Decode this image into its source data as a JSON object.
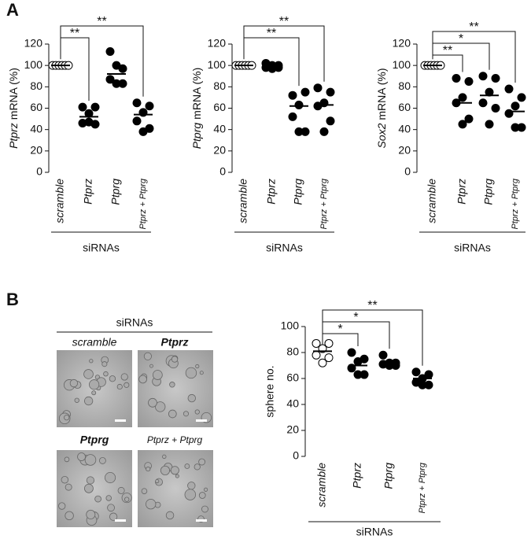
{
  "panel_labels": [
    "A",
    "B"
  ],
  "micrographs": {
    "header": "siRNAs",
    "labels": [
      "scramble",
      "Ptprz",
      "Ptprg",
      "Ptprz + Ptprg"
    ]
  },
  "chart_data": [
    {
      "type": "dot",
      "ylabel_gene": "Ptprz",
      "ylabel_unit": "mRNA (%)",
      "xlabel": "siRNAs",
      "categories": [
        "scramble",
        "Ptprz",
        "Ptprg",
        "Ptprz + Ptprg"
      ],
      "open_markers": [
        true,
        false,
        false,
        false
      ],
      "points": [
        [
          100,
          100,
          100,
          100,
          100,
          100
        ],
        [
          61,
          61,
          55,
          46,
          45,
          47
        ],
        [
          113,
          97,
          100,
          87,
          83,
          83
        ],
        [
          65,
          62,
          56,
          48,
          41,
          38
        ]
      ],
      "means": [
        100,
        52,
        92,
        54
      ],
      "ylim": [
        0,
        120
      ],
      "yticks": [
        0,
        20,
        40,
        60,
        80,
        100,
        120
      ],
      "comparisons": [
        {
          "from": 0,
          "to": 1,
          "label": "**"
        },
        {
          "from": 0,
          "to": 3,
          "label": "**"
        }
      ]
    },
    {
      "type": "dot",
      "ylabel_gene": "Ptprg",
      "ylabel_unit": "mRNA (%)",
      "xlabel": "siRNAs",
      "categories": [
        "scramble",
        "Ptprz",
        "Ptprg",
        "Ptprz + Ptprg"
      ],
      "open_markers": [
        true,
        false,
        false,
        false
      ],
      "points": [
        [
          100,
          100,
          100,
          100,
          100,
          100
        ],
        [
          102,
          100,
          100,
          98,
          98,
          97
        ],
        [
          72,
          75,
          63,
          52,
          38,
          38
        ],
        [
          79,
          75,
          65,
          62,
          48,
          38
        ]
      ],
      "means": [
        100,
        100,
        62,
        63
      ],
      "ylim": [
        0,
        120
      ],
      "yticks": [
        0,
        20,
        40,
        60,
        80,
        100,
        120
      ],
      "comparisons": [
        {
          "from": 0,
          "to": 2,
          "label": "**"
        },
        {
          "from": 0,
          "to": 3,
          "label": "**"
        }
      ]
    },
    {
      "type": "dot",
      "ylabel_gene": "Sox2",
      "ylabel_unit": "mRNA (%)",
      "xlabel": "siRNAs",
      "categories": [
        "scramble",
        "Ptprz",
        "Ptprg",
        "Ptprz + Ptprg"
      ],
      "open_markers": [
        true,
        false,
        false,
        false
      ],
      "points": [
        [
          100,
          100,
          100,
          100,
          100,
          100
        ],
        [
          88,
          85,
          70,
          65,
          50,
          45
        ],
        [
          90,
          88,
          75,
          65,
          60,
          45
        ],
        [
          78,
          70,
          62,
          55,
          42,
          42
        ]
      ],
      "means": [
        100,
        65,
        72,
        57
      ],
      "ylim": [
        0,
        120
      ],
      "yticks": [
        0,
        20,
        40,
        60,
        80,
        100,
        120
      ],
      "comparisons": [
        {
          "from": 0,
          "to": 1,
          "label": "**"
        },
        {
          "from": 0,
          "to": 2,
          "label": "*"
        },
        {
          "from": 0,
          "to": 3,
          "label": "**"
        }
      ]
    },
    {
      "type": "dot",
      "ylabel": "sphere no.",
      "xlabel": "siRNAs",
      "categories": [
        "scramble",
        "Ptprz",
        "Ptprg",
        "Ptprz + Ptprg"
      ],
      "open_markers": [
        true,
        false,
        false,
        false
      ],
      "points": [
        [
          87,
          87,
          83,
          78,
          76,
          72
        ],
        [
          80,
          75,
          73,
          68,
          63,
          63
        ],
        [
          78,
          72,
          72,
          71,
          70,
          70
        ],
        [
          65,
          63,
          60,
          57,
          55,
          55
        ]
      ],
      "means": [
        81,
        70,
        72,
        60
      ],
      "ylim": [
        0,
        100
      ],
      "yticks": [
        0,
        20,
        40,
        60,
        80,
        100
      ],
      "comparisons": [
        {
          "from": 0,
          "to": 1,
          "label": "*"
        },
        {
          "from": 0,
          "to": 2,
          "label": "*"
        },
        {
          "from": 0,
          "to": 3,
          "label": "**"
        }
      ]
    }
  ]
}
